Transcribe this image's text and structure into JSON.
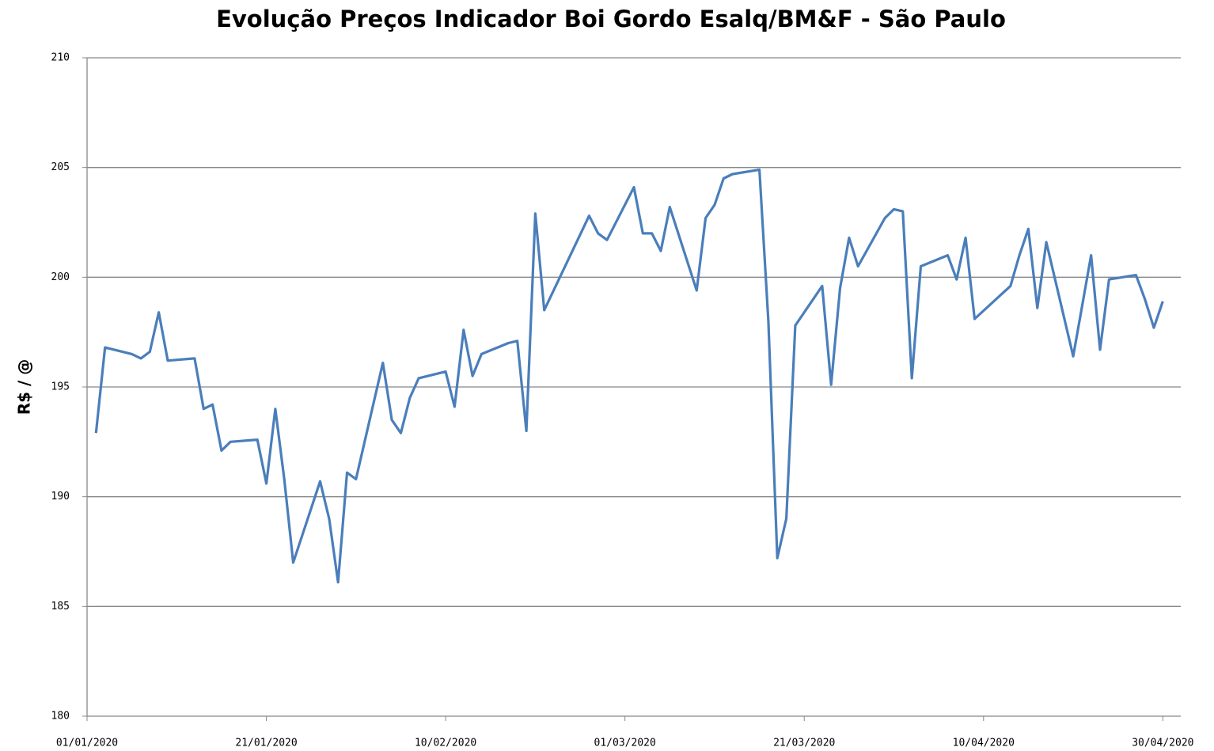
{
  "chart_data": {
    "type": "line",
    "title": "Evolução Preços Indicador Boi Gordo Esalq/BM&F - São Paulo",
    "y_label": "R$ / @",
    "x": [
      "02/01/2020",
      "03/01/2020",
      "06/01/2020",
      "07/01/2020",
      "08/01/2020",
      "09/01/2020",
      "10/01/2020",
      "13/01/2020",
      "14/01/2020",
      "15/01/2020",
      "16/01/2020",
      "17/01/2020",
      "20/01/2020",
      "21/01/2020",
      "22/01/2020",
      "23/01/2020",
      "24/01/2020",
      "27/01/2020",
      "28/01/2020",
      "29/01/2020",
      "30/01/2020",
      "31/01/2020",
      "03/02/2020",
      "04/02/2020",
      "05/02/2020",
      "06/02/2020",
      "07/02/2020",
      "10/02/2020",
      "11/02/2020",
      "12/02/2020",
      "13/02/2020",
      "14/02/2020",
      "17/02/2020",
      "18/02/2020",
      "19/02/2020",
      "20/02/2020",
      "21/02/2020",
      "26/02/2020",
      "27/02/2020",
      "28/02/2020",
      "02/03/2020",
      "03/03/2020",
      "04/03/2020",
      "05/03/2020",
      "06/03/2020",
      "09/03/2020",
      "10/03/2020",
      "11/03/2020",
      "12/03/2020",
      "13/03/2020",
      "16/03/2020",
      "17/03/2020",
      "18/03/2020",
      "19/03/2020",
      "20/03/2020",
      "23/03/2020",
      "24/03/2020",
      "25/03/2020",
      "26/03/2020",
      "27/03/2020",
      "30/03/2020",
      "31/03/2020",
      "01/04/2020",
      "02/04/2020",
      "03/04/2020",
      "06/04/2020",
      "07/04/2020",
      "08/04/2020",
      "09/04/2020",
      "13/04/2020",
      "14/04/2020",
      "15/04/2020",
      "16/04/2020",
      "17/04/2020",
      "20/04/2020",
      "22/04/2020",
      "23/04/2020",
      "24/04/2020",
      "27/04/2020",
      "28/04/2020",
      "29/04/2020",
      "30/04/2020"
    ],
    "series": [
      {
        "name": "Indicador Boi Gordo",
        "color": "#4a7ebb",
        "values": [
          192.9,
          196.8,
          196.5,
          196.3,
          196.6,
          198.4,
          196.2,
          196.3,
          194.0,
          194.2,
          192.1,
          192.5,
          192.6,
          190.6,
          194.0,
          190.8,
          187.0,
          190.7,
          189.0,
          186.1,
          191.1,
          190.8,
          196.1,
          193.5,
          192.9,
          194.5,
          195.4,
          195.7,
          194.1,
          197.6,
          195.5,
          196.5,
          197.0,
          197.1,
          193.0,
          202.9,
          198.5,
          202.8,
          202.0,
          201.7,
          204.1,
          202.0,
          202.0,
          201.2,
          203.2,
          199.4,
          202.7,
          203.3,
          204.5,
          204.7,
          204.9,
          198.0,
          187.2,
          189.0,
          197.8,
          199.6,
          195.1,
          199.5,
          201.8,
          200.5,
          202.7,
          203.1,
          203.0,
          195.4,
          200.5,
          201.0,
          199.9,
          201.8,
          198.1,
          199.6,
          201.0,
          202.2,
          198.6,
          201.6,
          196.4,
          201.0,
          196.7,
          199.9,
          200.1,
          199.0,
          197.7,
          198.9
        ]
      }
    ],
    "xlim": [
      "01/01/2020",
      "02/05/2020"
    ],
    "xticks": [
      "01/01/2020",
      "21/01/2020",
      "10/02/2020",
      "01/03/2020",
      "21/03/2020",
      "10/04/2020",
      "30/04/2020"
    ],
    "ylim": [
      180,
      210
    ],
    "yticks": [
      180,
      185,
      190,
      195,
      200,
      205,
      210
    ],
    "grid": true
  }
}
